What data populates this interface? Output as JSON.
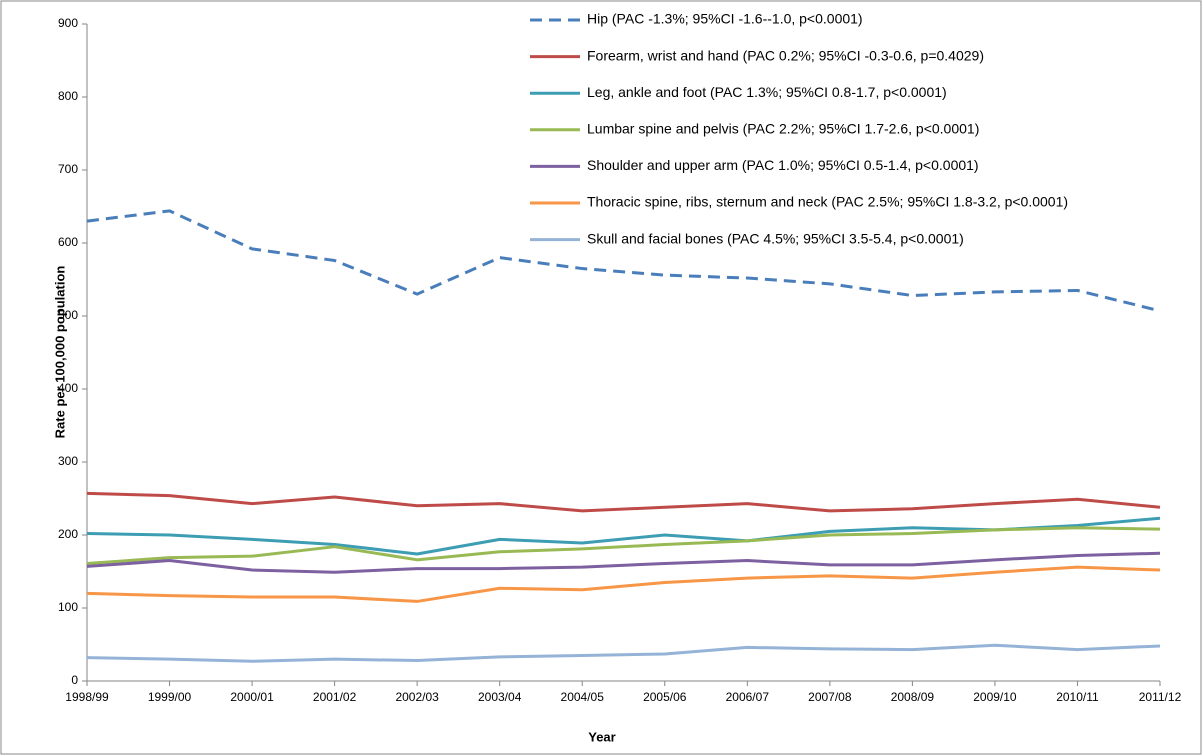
{
  "chart_data": {
    "type": "line",
    "x_label": "Year",
    "y_label": "Rate per 100,000 population",
    "categories": [
      "1998/99",
      "1999/00",
      "2000/01",
      "2001/02",
      "2002/03",
      "2003/04",
      "2004/05",
      "2005/06",
      "2006/07",
      "2007/08",
      "2008/09",
      "2009/10",
      "2010/11",
      "2011/12"
    ],
    "ylim": [
      0,
      900
    ],
    "yticks": [
      0,
      100,
      200,
      300,
      400,
      500,
      600,
      700,
      800,
      900
    ],
    "grid": false,
    "series": [
      {
        "name": "Hip (PAC -1.3%; 95%CI -1.6--1.0, p<0.0001)",
        "color": "#4a7ebb",
        "dashed": true,
        "values": [
          630,
          644,
          592,
          576,
          530,
          580,
          565,
          556,
          552,
          544,
          528,
          533,
          535,
          507
        ]
      },
      {
        "name": "Forearm, wrist and hand (PAC 0.2%; 95%CI -0.3-0.6, p=0.4029)",
        "color": "#be4b48",
        "values": [
          257,
          254,
          243,
          252,
          240,
          243,
          233,
          238,
          243,
          233,
          236,
          243,
          249,
          238
        ]
      },
      {
        "name": "Leg, ankle and foot (PAC 1.3%; 95%CI 0.8-1.7, p<0.0001)",
        "color": "#3d9db3",
        "values": [
          202,
          200,
          194,
          187,
          174,
          194,
          189,
          200,
          192,
          205,
          210,
          207,
          213,
          223
        ]
      },
      {
        "name": "Lumbar spine and pelvis (PAC 2.2%; 95%CI 1.7-2.6, p<0.0001)",
        "color": "#98b954",
        "values": [
          161,
          169,
          171,
          184,
          166,
          177,
          181,
          187,
          192,
          200,
          202,
          207,
          210,
          208
        ]
      },
      {
        "name": "Shoulder and upper arm (PAC 1.0%; 95%CI 0.5-1.4, p<0.0001)",
        "color": "#7d60a0",
        "values": [
          157,
          165,
          152,
          149,
          154,
          154,
          156,
          161,
          165,
          159,
          159,
          166,
          172,
          175
        ]
      },
      {
        "name": "Thoracic spine, ribs, sternum and neck (PAC 2.5%; 95%CI 1.8-3.2, p<0.0001)",
        "color": "#f79646",
        "values": [
          120,
          117,
          115,
          115,
          109,
          127,
          125,
          135,
          141,
          144,
          141,
          149,
          156,
          152
        ]
      },
      {
        "name": "Skull and facial bones (PAC 4.5%; 95%CI 3.5-5.4, p<0.0001)",
        "color": "#95b3d7",
        "values": [
          32,
          30,
          27,
          30,
          28,
          33,
          35,
          37,
          46,
          44,
          43,
          49,
          43,
          48
        ]
      }
    ]
  }
}
